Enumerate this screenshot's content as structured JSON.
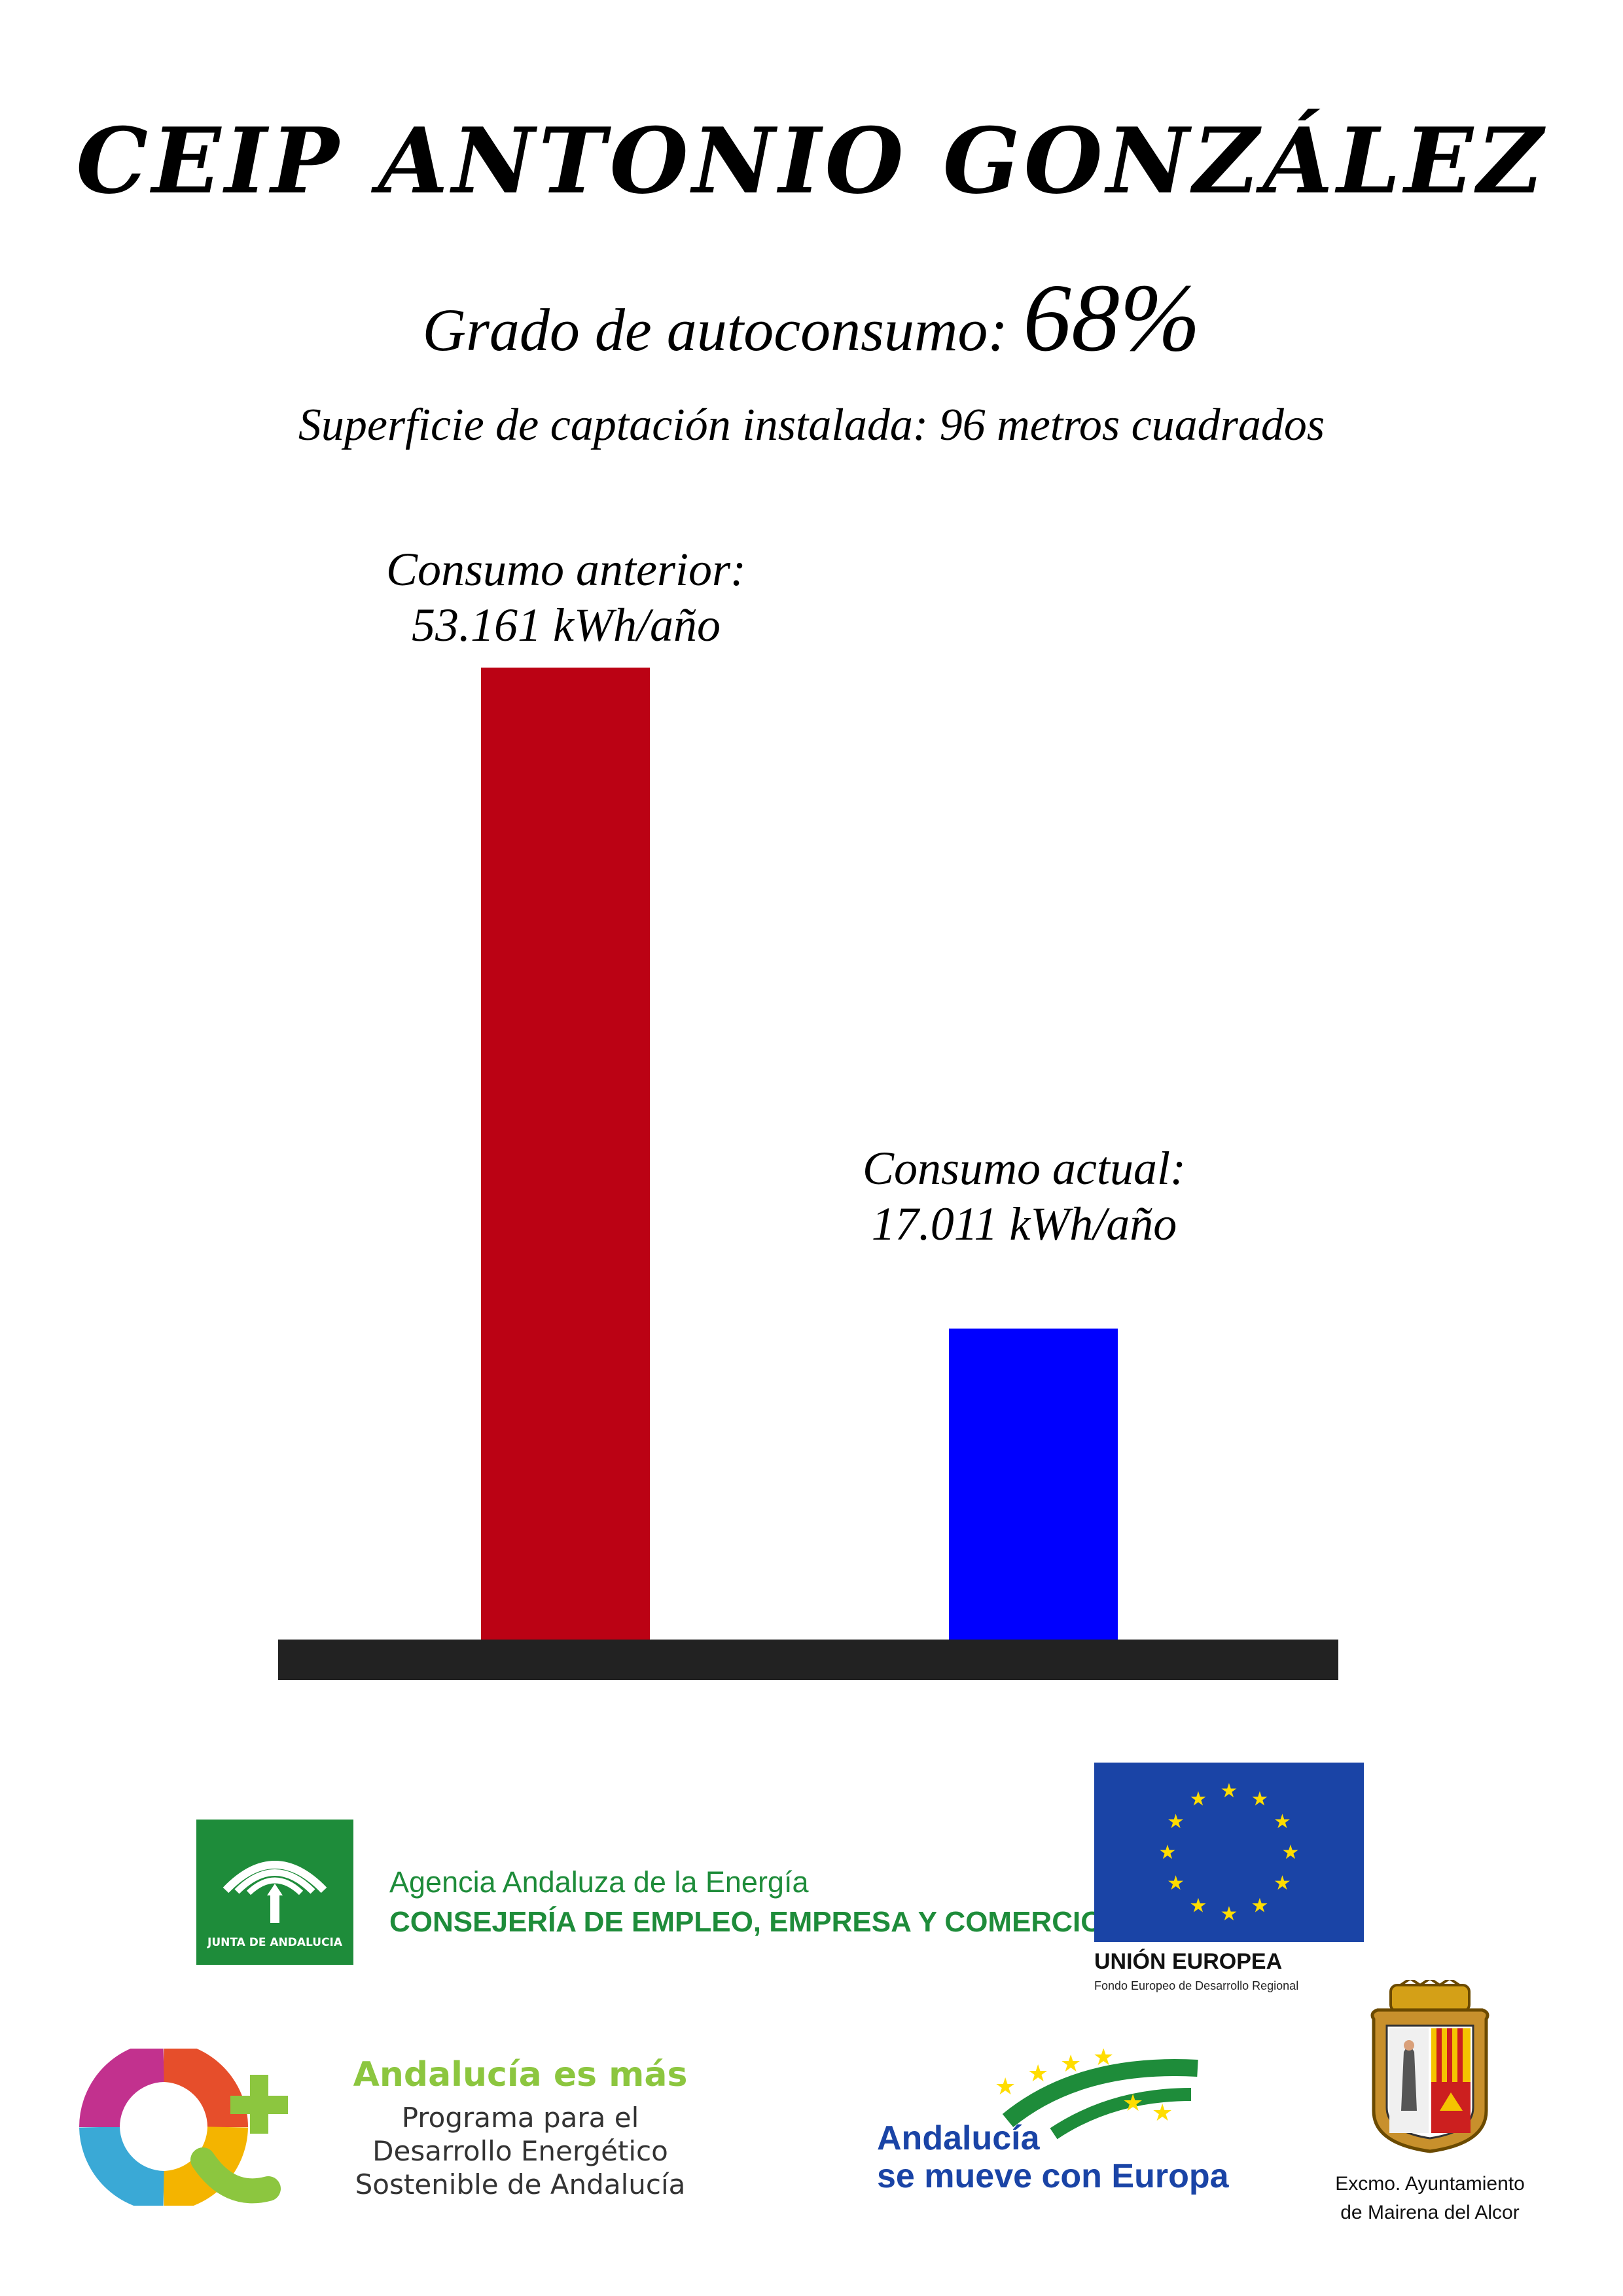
{
  "header": {
    "title": "CEIP ANTONIO GONZÁLEZ",
    "autoconsumo_label": "Grado de autoconsumo:",
    "autoconsumo_value": "68%",
    "surface_text": "Superficie de captación instalada: 96 metros cuadrados"
  },
  "chart_data": {
    "type": "bar",
    "categories": [
      "Consumo anterior:",
      "Consumo actual:"
    ],
    "values": [
      53161,
      17011
    ],
    "value_labels": [
      "53.161 kWh/año",
      "17.011 kWh/año"
    ],
    "unit": "kWh/año",
    "colors": [
      "#bb0214",
      "#0000ff"
    ],
    "baseline_color": "#222222",
    "ylim": [
      0,
      53161
    ],
    "grid": false,
    "legend": "none"
  },
  "logos": {
    "junta_text": "JUNTA DE ANDALUCIA",
    "agencia_line1": "Agencia Andaluza de la Energía",
    "agencia_line2": "CONSEJERÍA DE EMPLEO, EMPRESA Y COMERCIO",
    "eu_name": "UNIÓN EUROPEA",
    "eu_fund": "Fondo Europeo de Desarrollo Regional",
    "andalucia_mas_title": "Andalucía es más",
    "andalucia_mas_l1": "Programa para el",
    "andalucia_mas_l2": "Desarrollo Energético",
    "andalucia_mas_l3": "Sostenible de Andalucía",
    "mueve_l1": "Andalucía",
    "mueve_l2": "se mueve con Europa",
    "ayto_l1": "Excmo. Ayuntamiento",
    "ayto_l2": "de Mairena del Alcor"
  },
  "colors": {
    "junta_green": "#1e8c3a",
    "eu_blue": "#1a44a6",
    "eu_star": "#ffdd00"
  }
}
